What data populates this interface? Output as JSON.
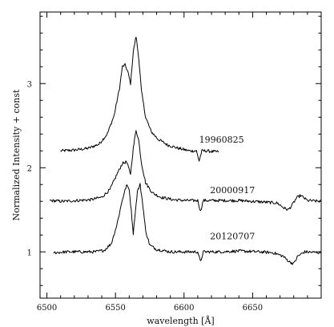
{
  "chart_data": {
    "type": "line",
    "xlabel": "wavelength [Å]",
    "ylabel": "Normalized Intensity   + const",
    "xlim": [
      6495,
      6700
    ],
    "ylim": [
      0.45,
      3.85
    ],
    "grid": false,
    "xticks": [
      6500,
      6550,
      6600,
      6650
    ],
    "yticks": [
      1,
      2,
      3
    ],
    "series": [
      {
        "name": "19960825",
        "label_at": [
          6611,
          2.3
        ],
        "points": [
          [
            6510,
            2.2
          ],
          [
            6520,
            2.21
          ],
          [
            6530,
            2.23
          ],
          [
            6538,
            2.28
          ],
          [
            6544,
            2.4
          ],
          [
            6549,
            2.62
          ],
          [
            6553,
            2.95
          ],
          [
            6555,
            3.2
          ],
          [
            6557,
            3.22
          ],
          [
            6559,
            3.14
          ],
          [
            6561,
            3.0
          ],
          [
            6563,
            3.38
          ],
          [
            6565,
            3.56
          ],
          [
            6567,
            3.3
          ],
          [
            6569,
            2.9
          ],
          [
            6572,
            2.6
          ],
          [
            6576,
            2.43
          ],
          [
            6581,
            2.34
          ],
          [
            6588,
            2.27
          ],
          [
            6596,
            2.23
          ],
          [
            6604,
            2.2
          ],
          [
            6609,
            2.2
          ],
          [
            6611,
            2.08
          ],
          [
            6613,
            2.2
          ],
          [
            6617,
            2.2
          ],
          [
            6621,
            2.19
          ],
          [
            6625,
            2.19
          ]
        ]
      },
      {
        "name": "20000917",
        "label_at": [
          6619,
          1.7
        ],
        "points": [
          [
            6502,
            1.61
          ],
          [
            6512,
            1.6
          ],
          [
            6522,
            1.61
          ],
          [
            6532,
            1.62
          ],
          [
            6540,
            1.65
          ],
          [
            6546,
            1.74
          ],
          [
            6551,
            1.92
          ],
          [
            6555,
            2.05
          ],
          [
            6558,
            2.07
          ],
          [
            6561,
            1.93
          ],
          [
            6563,
            2.23
          ],
          [
            6565,
            2.45
          ],
          [
            6567,
            2.32
          ],
          [
            6569,
            2.05
          ],
          [
            6572,
            1.82
          ],
          [
            6577,
            1.7
          ],
          [
            6583,
            1.65
          ],
          [
            6592,
            1.62
          ],
          [
            6602,
            1.61
          ],
          [
            6610,
            1.61
          ],
          [
            6612,
            1.48
          ],
          [
            6614,
            1.61
          ],
          [
            6625,
            1.61
          ],
          [
            6640,
            1.61
          ],
          [
            6650,
            1.6
          ],
          [
            6660,
            1.59
          ],
          [
            6668,
            1.58
          ],
          [
            6673,
            1.52
          ],
          [
            6676,
            1.5
          ],
          [
            6679,
            1.56
          ],
          [
            6682,
            1.64
          ],
          [
            6685,
            1.67
          ],
          [
            6690,
            1.61
          ],
          [
            6700,
            1.6
          ]
        ]
      },
      {
        "name": "20120707",
        "label_at": [
          6619,
          1.15
        ],
        "points": [
          [
            6505,
            0.99
          ],
          [
            6515,
            1.0
          ],
          [
            6525,
            1.0
          ],
          [
            6535,
            1.0
          ],
          [
            6542,
            1.02
          ],
          [
            6547,
            1.1
          ],
          [
            6551,
            1.32
          ],
          [
            6555,
            1.62
          ],
          [
            6558,
            1.79
          ],
          [
            6560,
            1.75
          ],
          [
            6562,
            1.4
          ],
          [
            6563,
            1.22
          ],
          [
            6564,
            1.4
          ],
          [
            6566,
            1.72
          ],
          [
            6568,
            1.8
          ],
          [
            6570,
            1.55
          ],
          [
            6572,
            1.25
          ],
          [
            6575,
            1.08
          ],
          [
            6580,
            1.03
          ],
          [
            6590,
            1.0
          ],
          [
            6600,
            1.0
          ],
          [
            6610,
            1.0
          ],
          [
            6612,
            0.88
          ],
          [
            6614,
            1.0
          ],
          [
            6625,
            1.0
          ],
          [
            6640,
            1.01
          ],
          [
            6655,
            1.0
          ],
          [
            6665,
            0.99
          ],
          [
            6672,
            0.95
          ],
          [
            6677,
            0.88
          ],
          [
            6680,
            0.86
          ],
          [
            6683,
            0.95
          ],
          [
            6688,
            1.0
          ],
          [
            6700,
            0.99
          ]
        ]
      }
    ]
  }
}
